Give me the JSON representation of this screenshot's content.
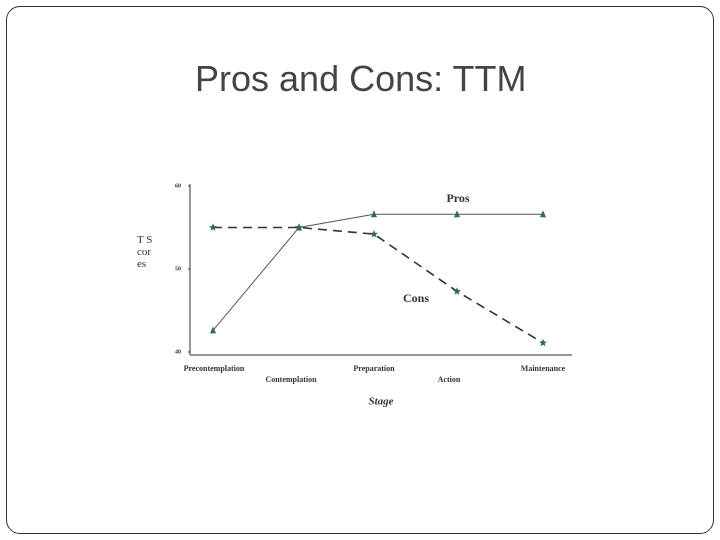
{
  "title": "Pros and Cons: TTM",
  "chart_data": {
    "type": "line",
    "x_label": "Stage",
    "y_label": "T Scores",
    "categories": [
      "Precontemplation",
      "Contemplation",
      "Preparation",
      "Action",
      "Maintenance"
    ],
    "series": [
      {
        "name": "Pros",
        "color": "#555555",
        "marker_color": "#2e6b4f",
        "marker": "triangle",
        "line_style": "solid",
        "values": [
          42.6,
          55,
          56.6,
          56.6,
          56.6
        ]
      },
      {
        "name": "Cons",
        "color": "#333333",
        "marker_color": "#2e6b4f",
        "marker": "star",
        "line_style": "dashed",
        "values": [
          55,
          55,
          54.2,
          47.3,
          41.1
        ]
      }
    ],
    "ylim": [
      40,
      60
    ],
    "yticks": [
      40,
      50,
      60
    ],
    "grid": false
  }
}
